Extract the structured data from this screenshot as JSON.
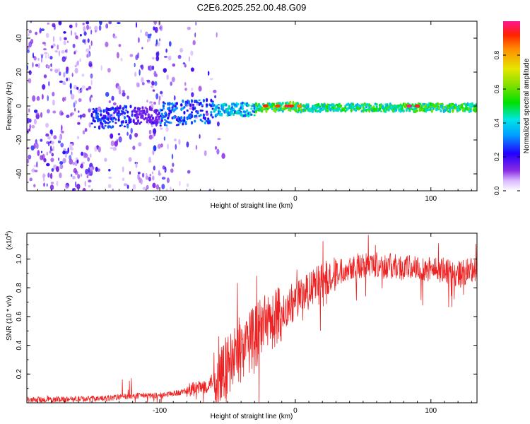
{
  "title": "C2E6.2025.252.00.48.G09",
  "colors": {
    "snr_line": "#ee2222",
    "axis": "#000000",
    "background": "#ffffff"
  },
  "chart_data": [
    {
      "type": "heatmap",
      "name": "spectrogram",
      "xlabel": "Height of straight line (km)",
      "ylabel": "Frequency (Hz)",
      "xlim": [
        -198,
        134
      ],
      "ylim": [
        -50,
        50
      ],
      "xticks": [
        -100,
        0,
        100
      ],
      "xtick_labels": [
        "-100",
        "0",
        "100"
      ],
      "yticks": [
        -40,
        -20,
        0,
        20,
        40
      ],
      "ytick_labels": [
        "-40",
        "-20",
        "0",
        "20",
        "40"
      ],
      "colorbar": {
        "label": "Normalized spectral amplitude",
        "range": [
          0,
          1
        ],
        "ticks": [
          0,
          0.2,
          0.4,
          0.6,
          0.8
        ],
        "tick_labels": [
          "0.0",
          "0.2",
          "0.4",
          "0.6",
          "0.8"
        ]
      },
      "signal_band": {
        "x_start": -65,
        "x_end": 134,
        "center_hz": 0,
        "peak_x": [
          -5,
          85
        ]
      }
    },
    {
      "type": "line",
      "name": "snr",
      "xlabel": "Height of straight line (km)",
      "ylabel": "SNR (10 * v/v)",
      "multiplier": "(x10",
      "multiplier_exp": "4",
      "multiplier_close": ")",
      "xlim": [
        -198,
        134
      ],
      "ylim": [
        0,
        1.18
      ],
      "xticks": [
        -100,
        0,
        100
      ],
      "xtick_labels": [
        "-100",
        "0",
        "100"
      ],
      "yticks": [
        0.2,
        0.4,
        0.6,
        0.8,
        1.0
      ],
      "ytick_labels": [
        "0.2",
        "0.4",
        "0.6",
        "0.8",
        "1.0"
      ],
      "x": [
        -198,
        -140,
        -120,
        -100,
        -80,
        -65,
        -50,
        -35,
        -20,
        -10,
        0,
        10,
        20,
        30,
        40,
        50,
        60,
        70,
        80,
        90,
        100,
        110,
        120,
        134
      ],
      "y": [
        0.02,
        0.03,
        0.05,
        0.05,
        0.08,
        0.12,
        0.25,
        0.42,
        0.55,
        0.62,
        0.71,
        0.78,
        0.85,
        0.9,
        0.95,
        0.96,
        0.96,
        0.95,
        0.94,
        0.94,
        0.93,
        0.92,
        0.9,
        0.93
      ]
    }
  ]
}
